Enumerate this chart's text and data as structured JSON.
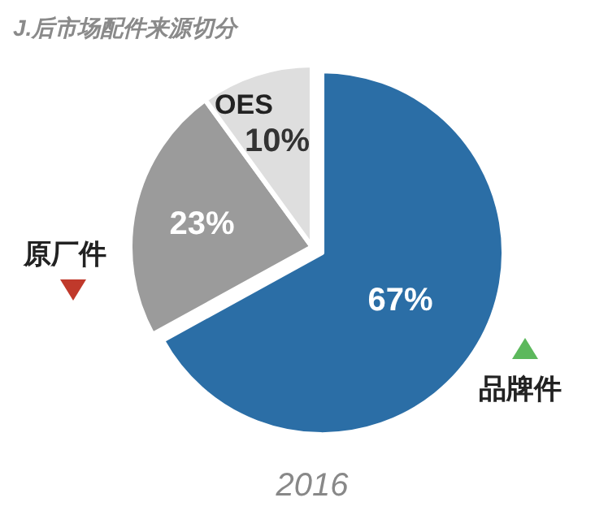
{
  "chart_data": {
    "type": "pie",
    "title": "J.后市场配件来源切分",
    "annotations": [
      "2016"
    ],
    "categories": [
      "品牌件",
      "原厂件",
      "OES"
    ],
    "values": [
      67,
      23,
      10
    ],
    "colors": [
      "#2b6ea6",
      "#9b9b9b",
      "#dedede"
    ],
    "value_labels": [
      "67%",
      "23%",
      "10%"
    ]
  }
}
